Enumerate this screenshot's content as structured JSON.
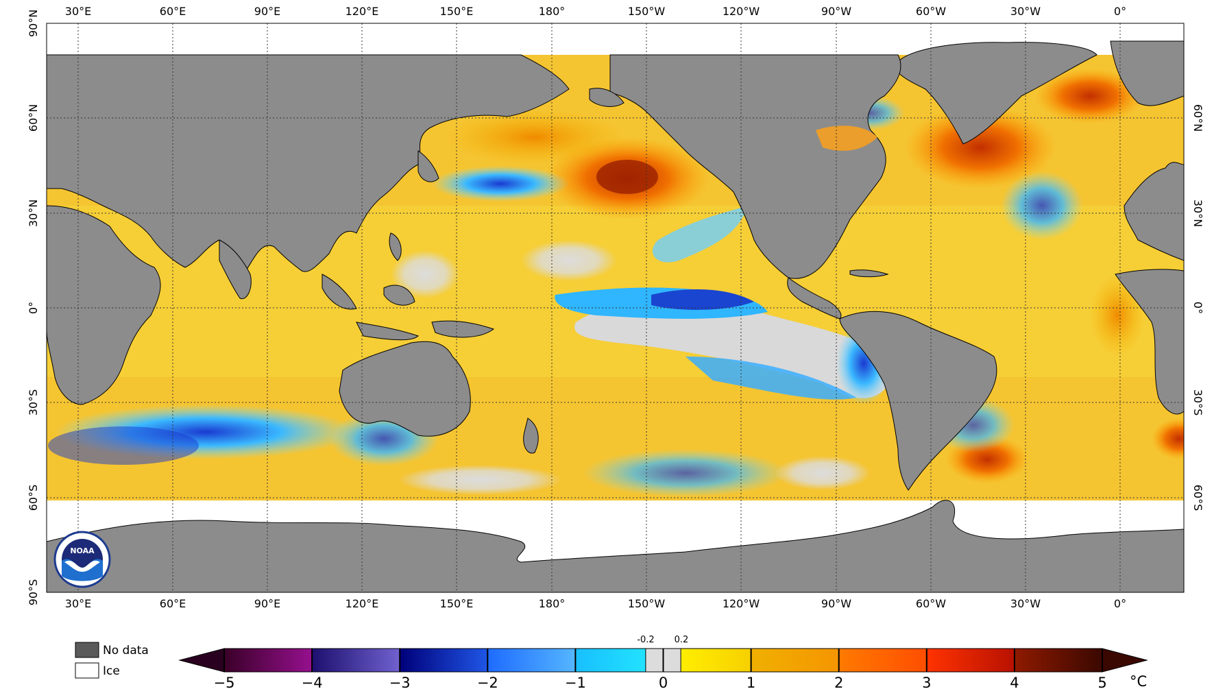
{
  "map": {
    "lon_labels": [
      "30°E",
      "60°E",
      "90°E",
      "120°E",
      "150°E",
      "180°",
      "150°W",
      "120°W",
      "90°W",
      "60°W",
      "30°W",
      "0°"
    ],
    "lat_labels": [
      "90°N",
      "60°N",
      "30°N",
      "0°",
      "30°S",
      "60°S",
      "90°S"
    ],
    "lat_labels_right": [
      "60°N",
      "30°N",
      "0°",
      "30°S",
      "60°S"
    ],
    "colors": {
      "land": "#8c8c8c",
      "ocean_warm": "#f5c431",
      "neutral_gray": "#d9d9d9",
      "ice": "#ffffff",
      "grid": "#333333"
    }
  },
  "legend": {
    "no_data_label": "No data",
    "ice_label": "Ice",
    "no_data_color": "#5a5a5a",
    "ice_color": "#ffffff"
  },
  "colorbar": {
    "ticks": [
      "−5",
      "−4",
      "−3",
      "−2",
      "−1",
      "0",
      "1",
      "2",
      "3",
      "4",
      "5"
    ],
    "tick_values": [
      -5,
      -4,
      -3,
      -2,
      -1,
      0,
      1,
      2,
      3,
      4,
      5
    ],
    "neutral_band": [
      "-0.2",
      "0.2"
    ],
    "unit": "°C",
    "colors": [
      "#2a0020",
      "#5b0a5e",
      "#9c1b8f",
      "#2b1a7a",
      "#6655c2",
      "#00007a",
      "#1a4fd6",
      "#2e8bff",
      "#7fdcff",
      "#f9f33a",
      "#f5b400",
      "#ff7a00",
      "#e32400",
      "#8a1a00",
      "#3a0800"
    ]
  },
  "logo": {
    "text": "NOAA"
  }
}
